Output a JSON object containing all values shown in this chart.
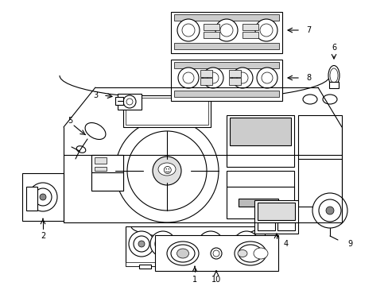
{
  "background_color": "#ffffff",
  "line_color": "#000000",
  "fig_width": 4.89,
  "fig_height": 3.6,
  "dpi": 100,
  "gray_fill": "#cccccc",
  "dark_gray": "#888888",
  "light_gray": "#dddddd"
}
